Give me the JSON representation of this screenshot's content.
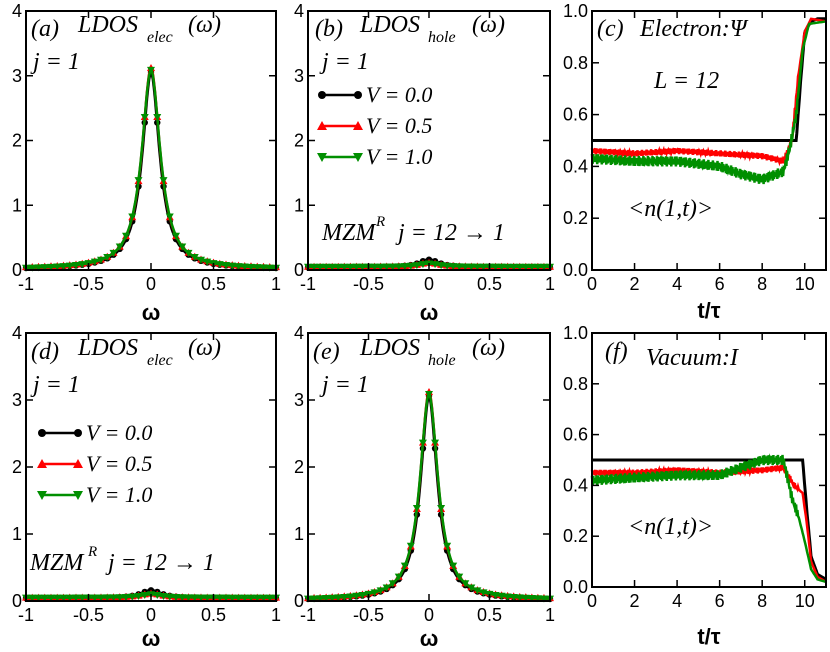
{
  "colors": {
    "series0": "#000000",
    "series1": "#ff0000",
    "series2": "#008f00"
  },
  "chart_data": [
    {
      "type": "line",
      "id": "a",
      "annotations": [
        "(a)",
        "LDOS",
        "elec",
        "(ω)",
        "j = 1"
      ],
      "xlabel": "ω",
      "xlim": [
        -1,
        1
      ],
      "ylim": [
        0,
        4
      ],
      "xticks": [
        "-1",
        "-0.5",
        "0",
        "0.5",
        "1"
      ],
      "yticks": [
        "0",
        "1",
        "2",
        "3",
        "4"
      ],
      "series": [
        {
          "name": "V = 0.0",
          "peak": 3.05,
          "width": 0.085,
          "offset": 0.01
        },
        {
          "name": "V = 0.5",
          "peak": 3.1,
          "width": 0.088,
          "offset": 0.02
        },
        {
          "name": "V = 1.0",
          "peak": 3.08,
          "width": 0.09,
          "offset": 0.01
        }
      ]
    },
    {
      "type": "line",
      "id": "b",
      "annotations": [
        "(b)",
        "LDOS",
        "hole",
        "(ω)",
        "j = 1",
        "MZM",
        "R",
        "j = 12  → 1"
      ],
      "xlabel": "ω",
      "xlim": [
        -1,
        1
      ],
      "ylim": [
        0,
        4
      ],
      "xticks": [
        "-1",
        "-0.5",
        "0",
        "0.5",
        "1"
      ],
      "yticks": [
        "0",
        "1",
        "2",
        "3",
        "4"
      ],
      "legend": [
        "V = 0.0",
        "V = 0.5",
        "V = 1.0"
      ],
      "series": [
        {
          "name": "V = 0.0",
          "peak": 0.12,
          "width": 0.1,
          "offset": 0.04
        },
        {
          "name": "V = 0.5",
          "peak": 0.06,
          "width": 0.1,
          "offset": 0.05
        },
        {
          "name": "V = 1.0",
          "peak": 0.05,
          "width": 0.1,
          "offset": 0.05
        }
      ]
    },
    {
      "type": "line",
      "id": "c",
      "annotations": [
        "(c)",
        "Electron:Ψ",
        "L = 12",
        "<n(1,t)>"
      ],
      "xlabel": "t/τ",
      "xlim": [
        0,
        11
      ],
      "ylim": [
        0,
        1
      ],
      "xticks": [
        "0",
        "2",
        "4",
        "6",
        "8",
        "10"
      ],
      "yticks": [
        "0.0",
        "0.2",
        "0.4",
        "0.6",
        "0.8",
        "1.0"
      ],
      "series": [
        {
          "name": "V = 0.0",
          "t": [
            0,
            9.6,
            9.8,
            10.0,
            10.3,
            10.6,
            11
          ],
          "n": [
            0.5,
            0.5,
            0.72,
            0.92,
            0.96,
            0.97,
            0.97
          ]
        },
        {
          "name": "V = 0.5",
          "t": [
            0,
            2,
            4,
            6,
            8,
            9,
            9.4,
            9.7,
            10.0,
            10.3,
            11
          ],
          "n": [
            0.46,
            0.45,
            0.46,
            0.45,
            0.44,
            0.42,
            0.5,
            0.75,
            0.92,
            0.97,
            0.96
          ]
        },
        {
          "name": "V = 1.0",
          "t": [
            0,
            2,
            4,
            6,
            7,
            8,
            9,
            9.3,
            9.6,
            9.9,
            10.2,
            11
          ],
          "n": [
            0.43,
            0.42,
            0.42,
            0.4,
            0.37,
            0.35,
            0.38,
            0.47,
            0.6,
            0.85,
            0.95,
            0.96
          ]
        }
      ]
    },
    {
      "type": "line",
      "id": "d",
      "annotations": [
        "(d)",
        "LDOS",
        "elec",
        "(ω)",
        "j = 1",
        "MZM",
        "R",
        "j = 12  → 1"
      ],
      "xlabel": "ω",
      "xlim": [
        -1,
        1
      ],
      "ylim": [
        0,
        4
      ],
      "xticks": [
        "-1",
        "-0.5",
        "0",
        "0.5",
        "1"
      ],
      "yticks": [
        "0",
        "1",
        "2",
        "3",
        "4"
      ],
      "legend": [
        "V = 0.0",
        "V = 0.5",
        "V = 1.0"
      ],
      "series": [
        {
          "name": "V = 0.0",
          "peak": 0.12,
          "width": 0.1,
          "offset": 0.04
        },
        {
          "name": "V = 0.5",
          "peak": 0.06,
          "width": 0.1,
          "offset": 0.05
        },
        {
          "name": "V = 1.0",
          "peak": 0.05,
          "width": 0.1,
          "offset": 0.05
        }
      ]
    },
    {
      "type": "line",
      "id": "e",
      "annotations": [
        "(e)",
        "LDOS",
        "hole",
        "(ω)",
        "j = 1"
      ],
      "xlabel": "ω",
      "xlim": [
        -1,
        1
      ],
      "ylim": [
        0,
        4
      ],
      "xticks": [
        "-1",
        "-0.5",
        "0",
        "0.5",
        "1"
      ],
      "yticks": [
        "0",
        "1",
        "2",
        "3",
        "4"
      ],
      "series": [
        {
          "name": "V = 0.0",
          "peak": 3.05,
          "width": 0.085,
          "offset": 0.01
        },
        {
          "name": "V = 0.5",
          "peak": 3.1,
          "width": 0.088,
          "offset": 0.02
        },
        {
          "name": "V = 1.0",
          "peak": 3.08,
          "width": 0.09,
          "offset": 0.01
        }
      ]
    },
    {
      "type": "line",
      "id": "f",
      "annotations": [
        "(f)",
        "Vacuum:I",
        "<n(1,t)>"
      ],
      "xlabel": "t/τ",
      "xlim": [
        0,
        11
      ],
      "ylim": [
        0,
        1
      ],
      "xticks": [
        "0",
        "2",
        "4",
        "6",
        "8",
        "10"
      ],
      "yticks": [
        "0.0",
        "0.2",
        "0.4",
        "0.6",
        "0.8",
        "1.0"
      ],
      "series": [
        {
          "name": "V = 0.0",
          "t": [
            0,
            9.9,
            10.1,
            10.3,
            10.6,
            11
          ],
          "n": [
            0.5,
            0.5,
            0.3,
            0.12,
            0.05,
            0.03
          ]
        },
        {
          "name": "V = 0.5",
          "t": [
            0,
            2,
            4,
            6,
            8,
            9,
            9.5,
            9.9,
            10.1,
            10.3,
            10.6,
            11
          ],
          "n": [
            0.45,
            0.45,
            0.46,
            0.45,
            0.46,
            0.47,
            0.4,
            0.37,
            0.25,
            0.1,
            0.04,
            0.02
          ]
        },
        {
          "name": "V = 1.0",
          "t": [
            0,
            2,
            4,
            6,
            7,
            8,
            9,
            9.4,
            9.7,
            10.0,
            10.3,
            10.6,
            11
          ],
          "n": [
            0.42,
            0.43,
            0.44,
            0.44,
            0.47,
            0.5,
            0.5,
            0.35,
            0.28,
            0.18,
            0.07,
            0.03,
            0.02
          ]
        }
      ]
    }
  ]
}
